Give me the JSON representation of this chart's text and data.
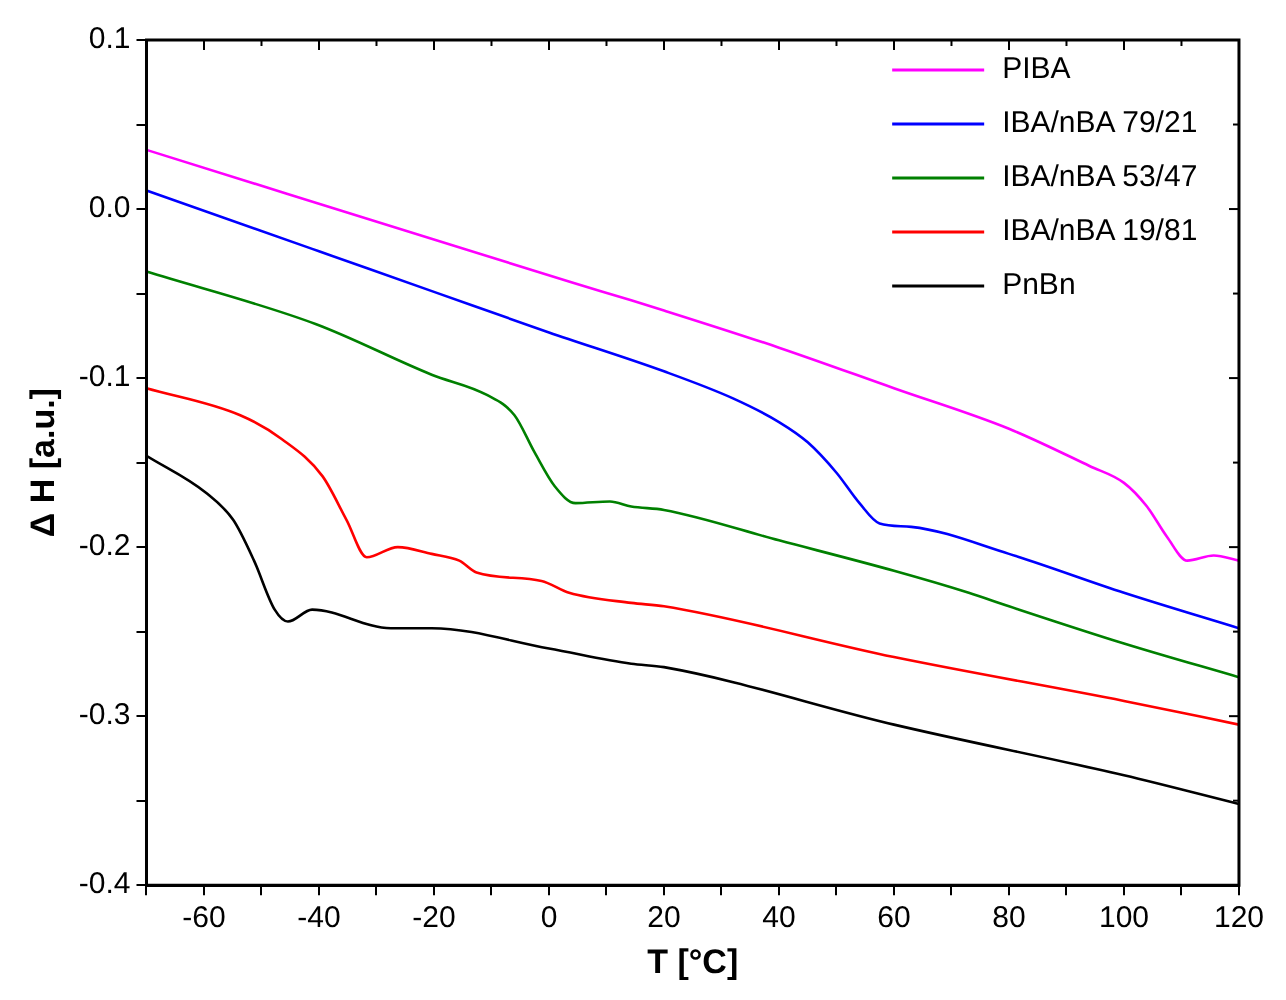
{
  "chart_data": {
    "type": "line",
    "xlabel": "T [°C]",
    "ylabel": "Δ H [a.u.]",
    "xlim": [
      -70,
      120
    ],
    "ylim": [
      -0.4,
      0.1
    ],
    "xticks": [
      {
        "value": -70,
        "label": null
      },
      -60,
      {
        "value": -50,
        "label": null
      },
      -40,
      {
        "value": -30,
        "label": null
      },
      -20,
      {
        "value": -10,
        "label": null
      },
      0,
      {
        "value": 10,
        "label": null
      },
      20,
      {
        "value": 30,
        "label": null
      },
      40,
      {
        "value": 50,
        "label": null
      },
      60,
      {
        "value": 70,
        "label": null
      },
      80,
      {
        "value": 90,
        "label": null
      },
      100,
      {
        "value": 110,
        "label": null
      },
      120
    ],
    "yticks": [
      {
        "value": -0.4,
        "label": "-0.4"
      },
      {
        "value": -0.35,
        "label": null
      },
      {
        "value": -0.3,
        "label": "-0.3"
      },
      {
        "value": -0.25,
        "label": null
      },
      {
        "value": -0.2,
        "label": "-0.2"
      },
      {
        "value": -0.15,
        "label": null
      },
      {
        "value": -0.1,
        "label": "-0.1"
      },
      {
        "value": -0.05,
        "label": null
      },
      {
        "value": 0,
        "label": "0.0"
      },
      {
        "value": 0.05,
        "label": null
      },
      {
        "value": 0.1,
        "label": "0.1"
      }
    ],
    "grid": false,
    "legend": "top right",
    "marker": "none",
    "line_style": "solid",
    "series": [
      {
        "name": "PIBA",
        "color": "#ff00ff",
        "x": [
          -70,
          3.6,
          14.3,
          20,
          40,
          60,
          80,
          94,
          100,
          104,
          107.5,
          111,
          115.6,
          120
        ],
        "values": [
          0.035,
          -0.043,
          -0.054,
          -0.06,
          -0.082,
          -0.106,
          -0.13,
          -0.152,
          -0.162,
          -0.176,
          -0.194,
          -0.208,
          -0.205,
          -0.208
        ]
      },
      {
        "name": "IBA/nBA 79/21",
        "color": "#0000ff",
        "x": [
          -70,
          -40,
          -20,
          0,
          20,
          32,
          40,
          45,
          50,
          54,
          57.5,
          63,
          80,
          100,
          120
        ],
        "values": [
          0.011,
          -0.025,
          -0.049,
          -0.073,
          -0.096,
          -0.112,
          -0.126,
          -0.138,
          -0.156,
          -0.174,
          -0.186,
          -0.188,
          -0.204,
          -0.227,
          -0.248
        ]
      },
      {
        "name": "IBA/nBA 53/47",
        "color": "#008000",
        "x": [
          -70,
          -40.6,
          -20.4,
          -10.8,
          -6,
          -2.5,
          1,
          4.6,
          10.6,
          14.3,
          20,
          40,
          60,
          73,
          80,
          100,
          120
        ],
        "values": [
          -0.037,
          -0.068,
          -0.098,
          -0.11,
          -0.122,
          -0.144,
          -0.164,
          -0.174,
          -0.173,
          -0.176,
          -0.178,
          -0.196,
          -0.214,
          -0.227,
          -0.235,
          -0.257,
          -0.277
        ]
      },
      {
        "name": "IBA/nBA 19/81",
        "color": "#ff0000",
        "x": [
          -70,
          -53.7,
          -46.5,
          -39.4,
          -35.2,
          -31.7,
          -26.3,
          -20.4,
          -15.6,
          -12.6,
          -1.3,
          3.5,
          14.3,
          20,
          60,
          100,
          120
        ],
        "values": [
          -0.106,
          -0.122,
          -0.136,
          -0.158,
          -0.184,
          -0.206,
          -0.2,
          -0.204,
          -0.208,
          -0.215,
          -0.22,
          -0.227,
          -0.233,
          -0.235,
          -0.265,
          -0.291,
          -0.305
        ]
      },
      {
        "name": "PnBn",
        "color": "#000000",
        "x": [
          -70,
          -59.6,
          -54.9,
          -51.3,
          -47.7,
          -45.4,
          -41.2,
          -27.5,
          -20.4,
          0,
          14.3,
          20,
          60,
          100,
          120
        ],
        "values": [
          -0.146,
          -0.168,
          -0.184,
          -0.208,
          -0.237,
          -0.244,
          -0.237,
          -0.248,
          -0.248,
          -0.26,
          -0.269,
          -0.271,
          -0.305,
          -0.335,
          -0.352
        ]
      }
    ]
  }
}
